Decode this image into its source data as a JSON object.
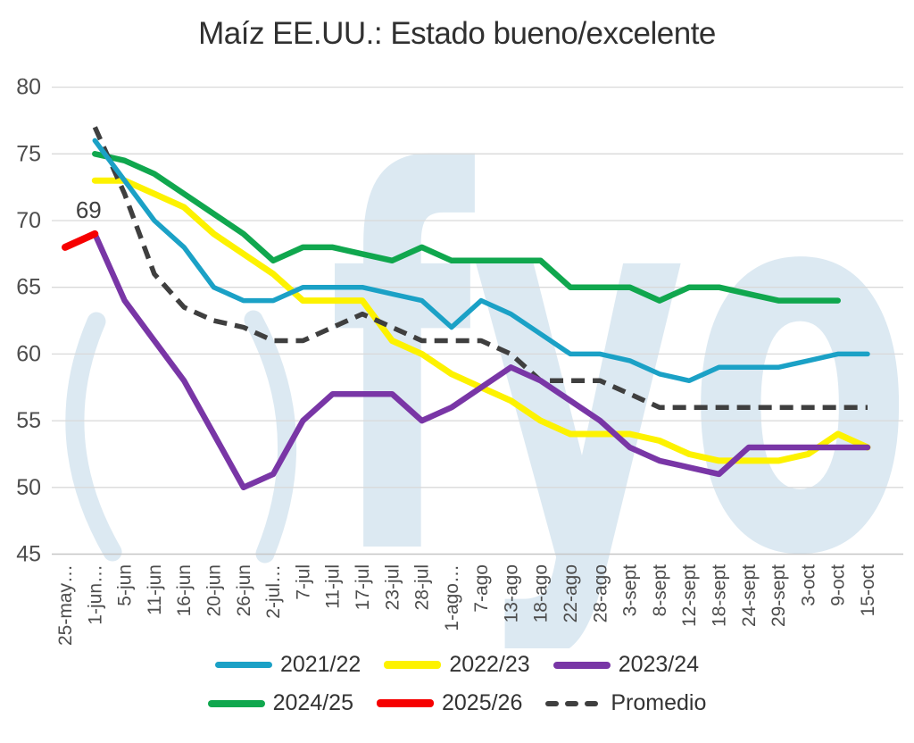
{
  "title": "Maíz EE.UU.: Estado bueno/excelente",
  "annotation": {
    "text": "69"
  },
  "watermark": {
    "text": "fyo",
    "color": "#dcE9f2"
  },
  "colors": {
    "grid": "#d9d9d9",
    "axis_line": "#c6c6c6",
    "tick_label": "#4d4d4d",
    "title_text": "#303030",
    "annotation_text": "#404040",
    "watermark": "#dce9f2"
  },
  "legend": {
    "rows": [
      [
        "2021/22",
        "2022/23",
        "2023/24"
      ],
      [
        "2024/25",
        "2025/26",
        "Promedio"
      ]
    ]
  },
  "chart_data": {
    "type": "line",
    "title": "Maíz EE.UU.: Estado bueno/excelente",
    "xlabel": "",
    "ylabel": "",
    "ylim": [
      45,
      80
    ],
    "y_ticks": [
      45,
      50,
      55,
      60,
      65,
      70,
      75,
      80
    ],
    "grid": true,
    "legend_position": "bottom",
    "categories": [
      "25-may…",
      "1-jun…",
      "5-jun",
      "11-jun",
      "16-jun",
      "20-jun",
      "26-jun",
      "2-jul…",
      "7-jul",
      "11-jul",
      "17-jul",
      "23-jul",
      "28-jul",
      "1-ago…",
      "7-ago",
      "13-ago",
      "18-ago",
      "22-ago",
      "28-ago",
      "3-sept",
      "8-sept",
      "12-sept",
      "18-sept",
      "24-sept",
      "29-sept",
      "3-oct",
      "9-oct",
      "15-oct"
    ],
    "annotation": {
      "text": "69",
      "x_index": 1,
      "y_value": 69
    },
    "series": [
      {
        "name": "2021/22",
        "color": "#1ba1c6",
        "style": "solid",
        "width": 5.5,
        "z": 3,
        "values": [
          null,
          76,
          73,
          70,
          68,
          65,
          64,
          64,
          65,
          65,
          65,
          64.5,
          64,
          62,
          64,
          63,
          61.5,
          60,
          60,
          59.5,
          58.5,
          58,
          59,
          59,
          59,
          59.5,
          60,
          60
        ]
      },
      {
        "name": "2022/23",
        "color": "#fdf200",
        "style": "solid",
        "width": 7,
        "z": 1,
        "values": [
          null,
          73,
          73,
          72,
          71,
          69,
          67.5,
          66,
          64,
          64,
          64,
          61,
          60,
          58.5,
          57.5,
          56.5,
          55,
          54,
          54,
          54,
          53.5,
          52.5,
          52,
          52,
          52,
          52.5,
          54,
          53
        ]
      },
      {
        "name": "2023/24",
        "color": "#7936a6",
        "style": "solid",
        "width": 6.5,
        "z": 4,
        "values": [
          null,
          69,
          64,
          61,
          58,
          54,
          50,
          51,
          55,
          57,
          57,
          57,
          55,
          56,
          57.5,
          59,
          58,
          56.5,
          55,
          53,
          52,
          51.5,
          51,
          53,
          53,
          53,
          53,
          53
        ]
      },
      {
        "name": "2024/25",
        "color": "#10a74e",
        "style": "solid",
        "width": 6.5,
        "z": 0,
        "values": [
          null,
          75,
          74.5,
          73.5,
          72,
          70.5,
          69,
          67,
          68,
          68,
          67.5,
          67,
          68,
          67,
          67,
          67,
          67,
          65,
          65,
          65,
          64,
          65,
          65,
          64.5,
          64,
          64,
          64,
          null
        ]
      },
      {
        "name": "2025/26",
        "color": "#f60000",
        "style": "solid",
        "width": 8,
        "z": 5,
        "values": [
          68,
          69,
          null,
          null,
          null,
          null,
          null,
          null,
          null,
          null,
          null,
          null,
          null,
          null,
          null,
          null,
          null,
          null,
          null,
          null,
          null,
          null,
          null,
          null,
          null,
          null,
          null,
          null
        ]
      },
      {
        "name": "Promedio",
        "color": "#3f3f3f",
        "style": "dashed",
        "width": 5.5,
        "z": 2,
        "values": [
          null,
          77,
          72,
          66,
          63.5,
          62.5,
          62,
          61,
          61,
          62,
          63,
          62,
          61,
          61,
          61,
          60,
          58,
          58,
          58,
          57,
          56,
          56,
          56,
          56,
          56,
          56,
          56,
          56
        ]
      }
    ]
  }
}
